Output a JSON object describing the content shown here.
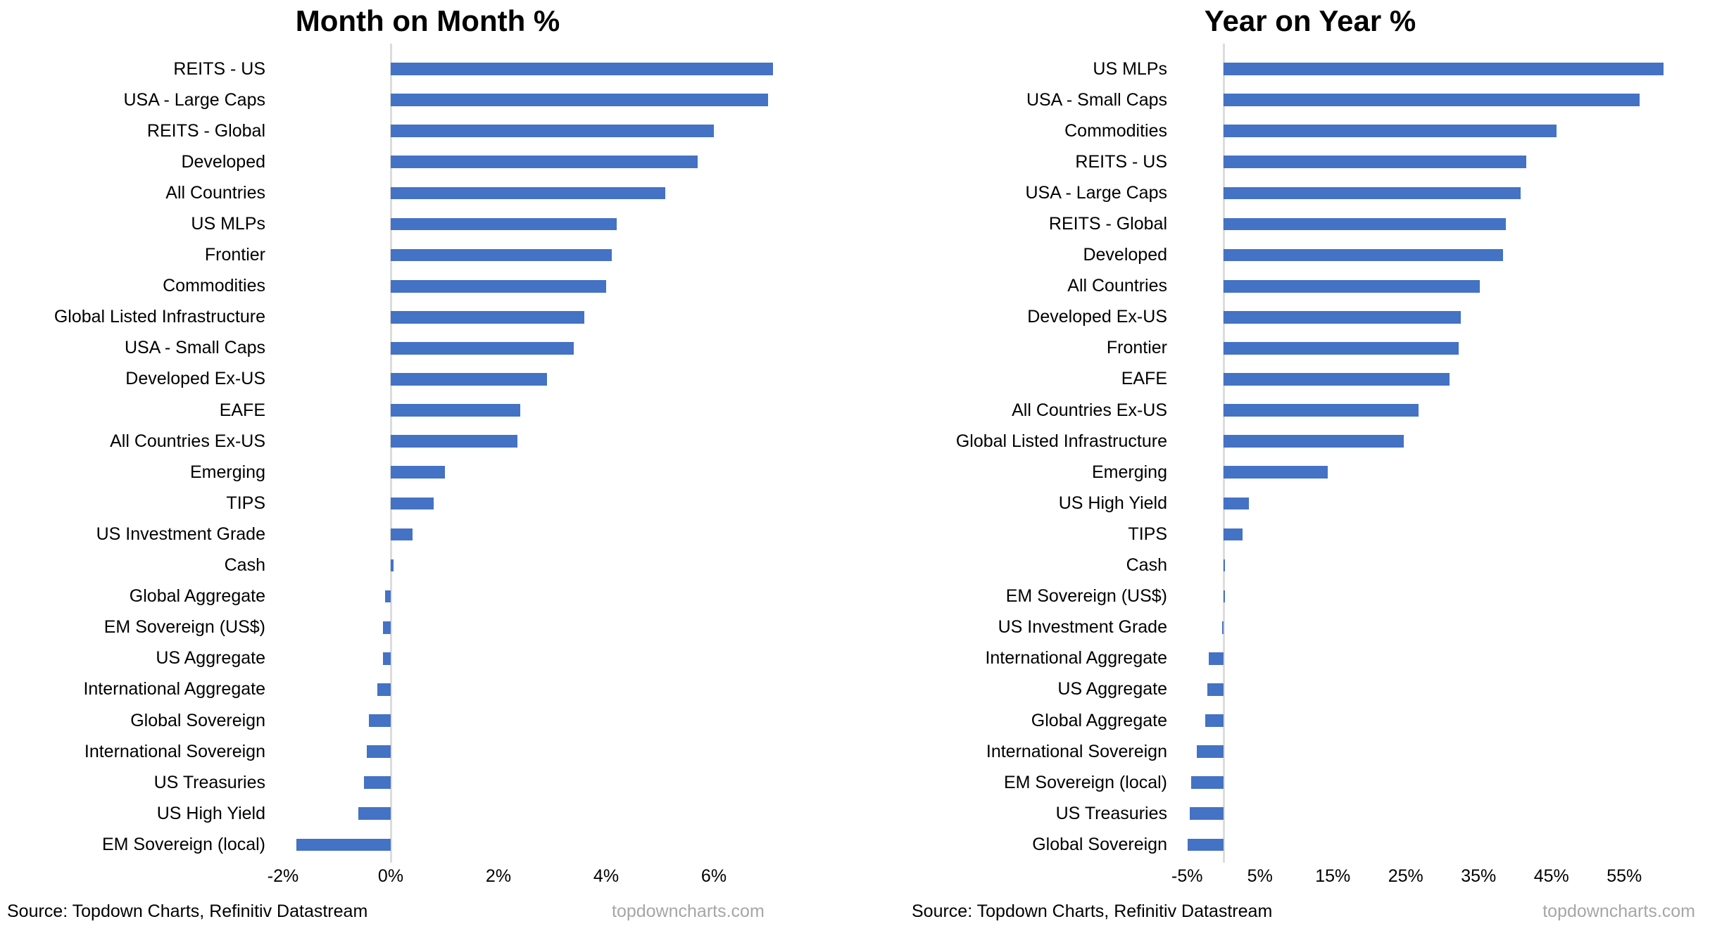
{
  "page": {
    "background_color": "#FFFFFF",
    "bar_color": "#4472C4",
    "axis_line_color": "#DCDCDC",
    "watermark_color": "#A6A6A6"
  },
  "chart_data": [
    {
      "type": "bar",
      "orientation": "horizontal",
      "title": "Month on Month %",
      "unit": "%",
      "categories": [
        "REITS - US",
        "USA - Large Caps",
        "REITS - Global",
        "Developed",
        "All Countries",
        "US MLPs",
        "Frontier",
        "Commodities",
        "Global Listed Infrastructure",
        "USA - Small Caps",
        "Developed Ex-US",
        "EAFE",
        "All Countries Ex-US",
        "Emerging",
        "TIPS",
        "US Investment Grade",
        "Cash",
        "Global Aggregate",
        "EM Sovereign (US$)",
        "US Aggregate",
        "International Aggregate",
        "Global Sovereign",
        "International Sovereign",
        "US Treasuries",
        "US High Yield",
        "EM Sovereign (local)"
      ],
      "values": [
        7.1,
        7.0,
        6.0,
        5.7,
        5.1,
        4.2,
        4.1,
        4.0,
        3.6,
        3.4,
        2.9,
        2.4,
        2.35,
        1.0,
        0.8,
        0.4,
        0.05,
        -0.1,
        -0.15,
        -0.15,
        -0.25,
        -0.4,
        -0.45,
        -0.5,
        -0.6,
        -1.75
      ],
      "x_ticks": [
        {
          "value": -2,
          "label": "-2%"
        },
        {
          "value": 0,
          "label": "0%"
        },
        {
          "value": 2,
          "label": "2%"
        },
        {
          "value": 4,
          "label": "4%"
        },
        {
          "value": 6,
          "label": "6%"
        }
      ],
      "xlim": [
        -2.2,
        8.3
      ],
      "grid": false,
      "legend": "none",
      "source_text": "Source: Topdown Charts, Refinitiv Datastream",
      "watermark": "topdowncharts.com"
    },
    {
      "type": "bar",
      "orientation": "horizontal",
      "title": "Year on Year %",
      "unit": "%",
      "categories": [
        "US MLPs",
        "USA - Small Caps",
        "Commodities",
        "REITS - US",
        "USA - Large Caps",
        "REITS - Global",
        "Developed",
        "All Countries",
        "Developed Ex-US",
        "Frontier",
        "EAFE",
        "All Countries Ex-US",
        "Global Listed Infrastructure",
        "Emerging",
        "US High Yield",
        "TIPS",
        "Cash",
        "EM Sovereign (US$)",
        "US Investment Grade",
        "International Aggregate",
        "US Aggregate",
        "Global Aggregate",
        "International Sovereign",
        "EM Sovereign (local)",
        "US Treasuries",
        "Global Sovereign"
      ],
      "values": [
        60.4,
        57.1,
        45.7,
        41.5,
        40.8,
        38.7,
        38.4,
        35.2,
        32.6,
        32.3,
        31.0,
        26.8,
        24.7,
        14.3,
        3.5,
        2.6,
        0.1,
        0.05,
        -0.1,
        -2.0,
        -2.2,
        -2.5,
        -3.7,
        -4.4,
        -4.6,
        -4.9
      ],
      "x_ticks": [
        {
          "value": -5,
          "label": "-5%"
        },
        {
          "value": 5,
          "label": "5%"
        },
        {
          "value": 15,
          "label": "15%"
        },
        {
          "value": 25,
          "label": "25%"
        },
        {
          "value": 35,
          "label": "35%"
        },
        {
          "value": 45,
          "label": "45%"
        },
        {
          "value": 55,
          "label": "55%"
        }
      ],
      "xlim": [
        -5.3,
        66
      ],
      "grid": false,
      "legend": "none",
      "source_text": "Source: Topdown Charts, Refinitiv Datastream",
      "watermark": "topdowncharts.com"
    }
  ]
}
